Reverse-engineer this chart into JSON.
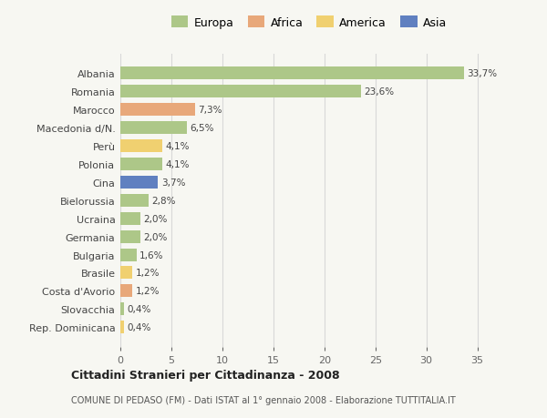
{
  "categories": [
    "Albania",
    "Romania",
    "Marocco",
    "Macedonia d/N.",
    "Perù",
    "Polonia",
    "Cina",
    "Bielorussia",
    "Ucraina",
    "Germania",
    "Bulgaria",
    "Brasile",
    "Costa d'Avorio",
    "Slovacchia",
    "Rep. Dominicana"
  ],
  "values": [
    33.7,
    23.6,
    7.3,
    6.5,
    4.1,
    4.1,
    3.7,
    2.8,
    2.0,
    2.0,
    1.6,
    1.2,
    1.2,
    0.4,
    0.4
  ],
  "labels": [
    "33,7%",
    "23,6%",
    "7,3%",
    "6,5%",
    "4,1%",
    "4,1%",
    "3,7%",
    "2,8%",
    "2,0%",
    "2,0%",
    "1,6%",
    "1,2%",
    "1,2%",
    "0,4%",
    "0,4%"
  ],
  "colors": [
    "#adc788",
    "#adc788",
    "#e8a87a",
    "#adc788",
    "#f0d070",
    "#adc788",
    "#6080c0",
    "#adc788",
    "#adc788",
    "#adc788",
    "#adc788",
    "#f0d070",
    "#e8a87a",
    "#adc788",
    "#f0d070"
  ],
  "legend_labels": [
    "Europa",
    "Africa",
    "America",
    "Asia"
  ],
  "legend_colors": [
    "#adc788",
    "#e8a87a",
    "#f0d070",
    "#6080c0"
  ],
  "title": "Cittadini Stranieri per Cittadinanza - 2008",
  "subtitle": "COMUNE DI PEDASO (FM) - Dati ISTAT al 1° gennaio 2008 - Elaborazione TUTTITALIA.IT",
  "xlim": [
    0,
    37
  ],
  "xticks": [
    0,
    5,
    10,
    15,
    20,
    25,
    30,
    35
  ],
  "bg_color": "#f7f7f2",
  "bar_height": 0.7,
  "grid_color": "#d8d8d8"
}
